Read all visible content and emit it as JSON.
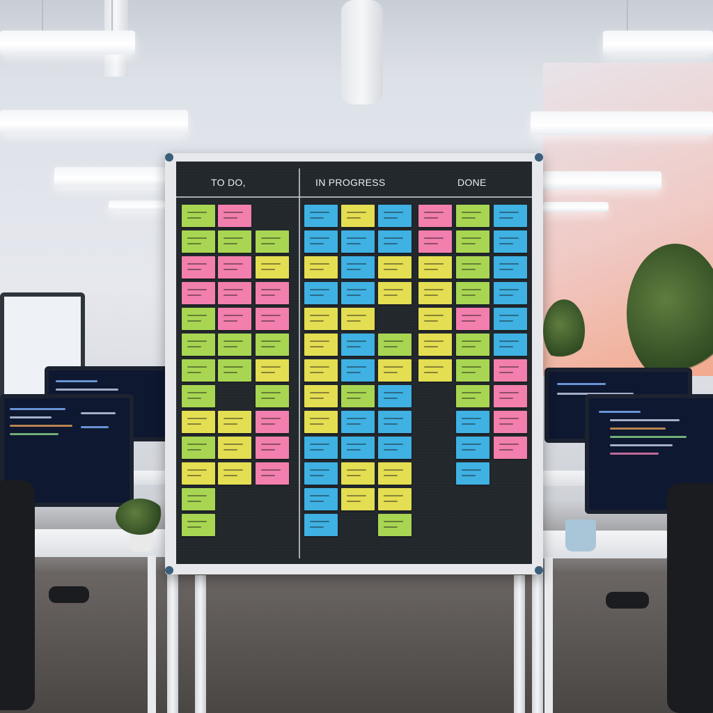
{
  "board": {
    "columns": [
      {
        "title": "TO DO,"
      },
      {
        "title": "IN PROGRESS"
      },
      {
        "title": "DONE"
      }
    ]
  },
  "colors": {
    "green": "#a8d652",
    "pink": "#f27fae",
    "yellow": "#e4de52",
    "blue": "#3fb1e3",
    "board": "#22272c",
    "frame": "#e6e8eb"
  },
  "note_grid": [
    [
      "g",
      "p",
      null,
      "b",
      "y",
      "b",
      "p",
      "g",
      "b"
    ],
    [
      "g",
      "g",
      "g",
      "b",
      "b",
      "b",
      "p",
      "g",
      "b"
    ],
    [
      "p",
      "p",
      "y",
      "y",
      "b",
      "y",
      "y",
      "g",
      "b"
    ],
    [
      "p",
      "p",
      "p",
      "b",
      "b",
      "y",
      "y",
      "g",
      "b"
    ],
    [
      "g",
      "p",
      "p",
      "y",
      "y",
      null,
      "y",
      "p",
      "b"
    ],
    [
      "g",
      "g",
      "g",
      "y",
      "b",
      "g",
      "y",
      "g",
      "b"
    ],
    [
      "g",
      "g",
      "y",
      "y",
      "b",
      "y",
      "y",
      "g",
      "p"
    ],
    [
      "g",
      null,
      "g",
      "y",
      "g",
      "b",
      null,
      "g",
      "p"
    ],
    [
      "y",
      "y",
      "p",
      "y",
      "b",
      "b",
      null,
      "b",
      "p"
    ],
    [
      "g",
      "y",
      "p",
      "b",
      "b",
      "b",
      null,
      "b",
      "p"
    ],
    [
      "y",
      "y",
      "p",
      "b",
      "y",
      "y",
      null,
      "b",
      null
    ],
    [
      "g",
      null,
      null,
      "b",
      "y",
      "y",
      null,
      null,
      null
    ],
    [
      "g",
      null,
      null,
      "b",
      null,
      "g",
      null,
      null,
      null
    ]
  ]
}
